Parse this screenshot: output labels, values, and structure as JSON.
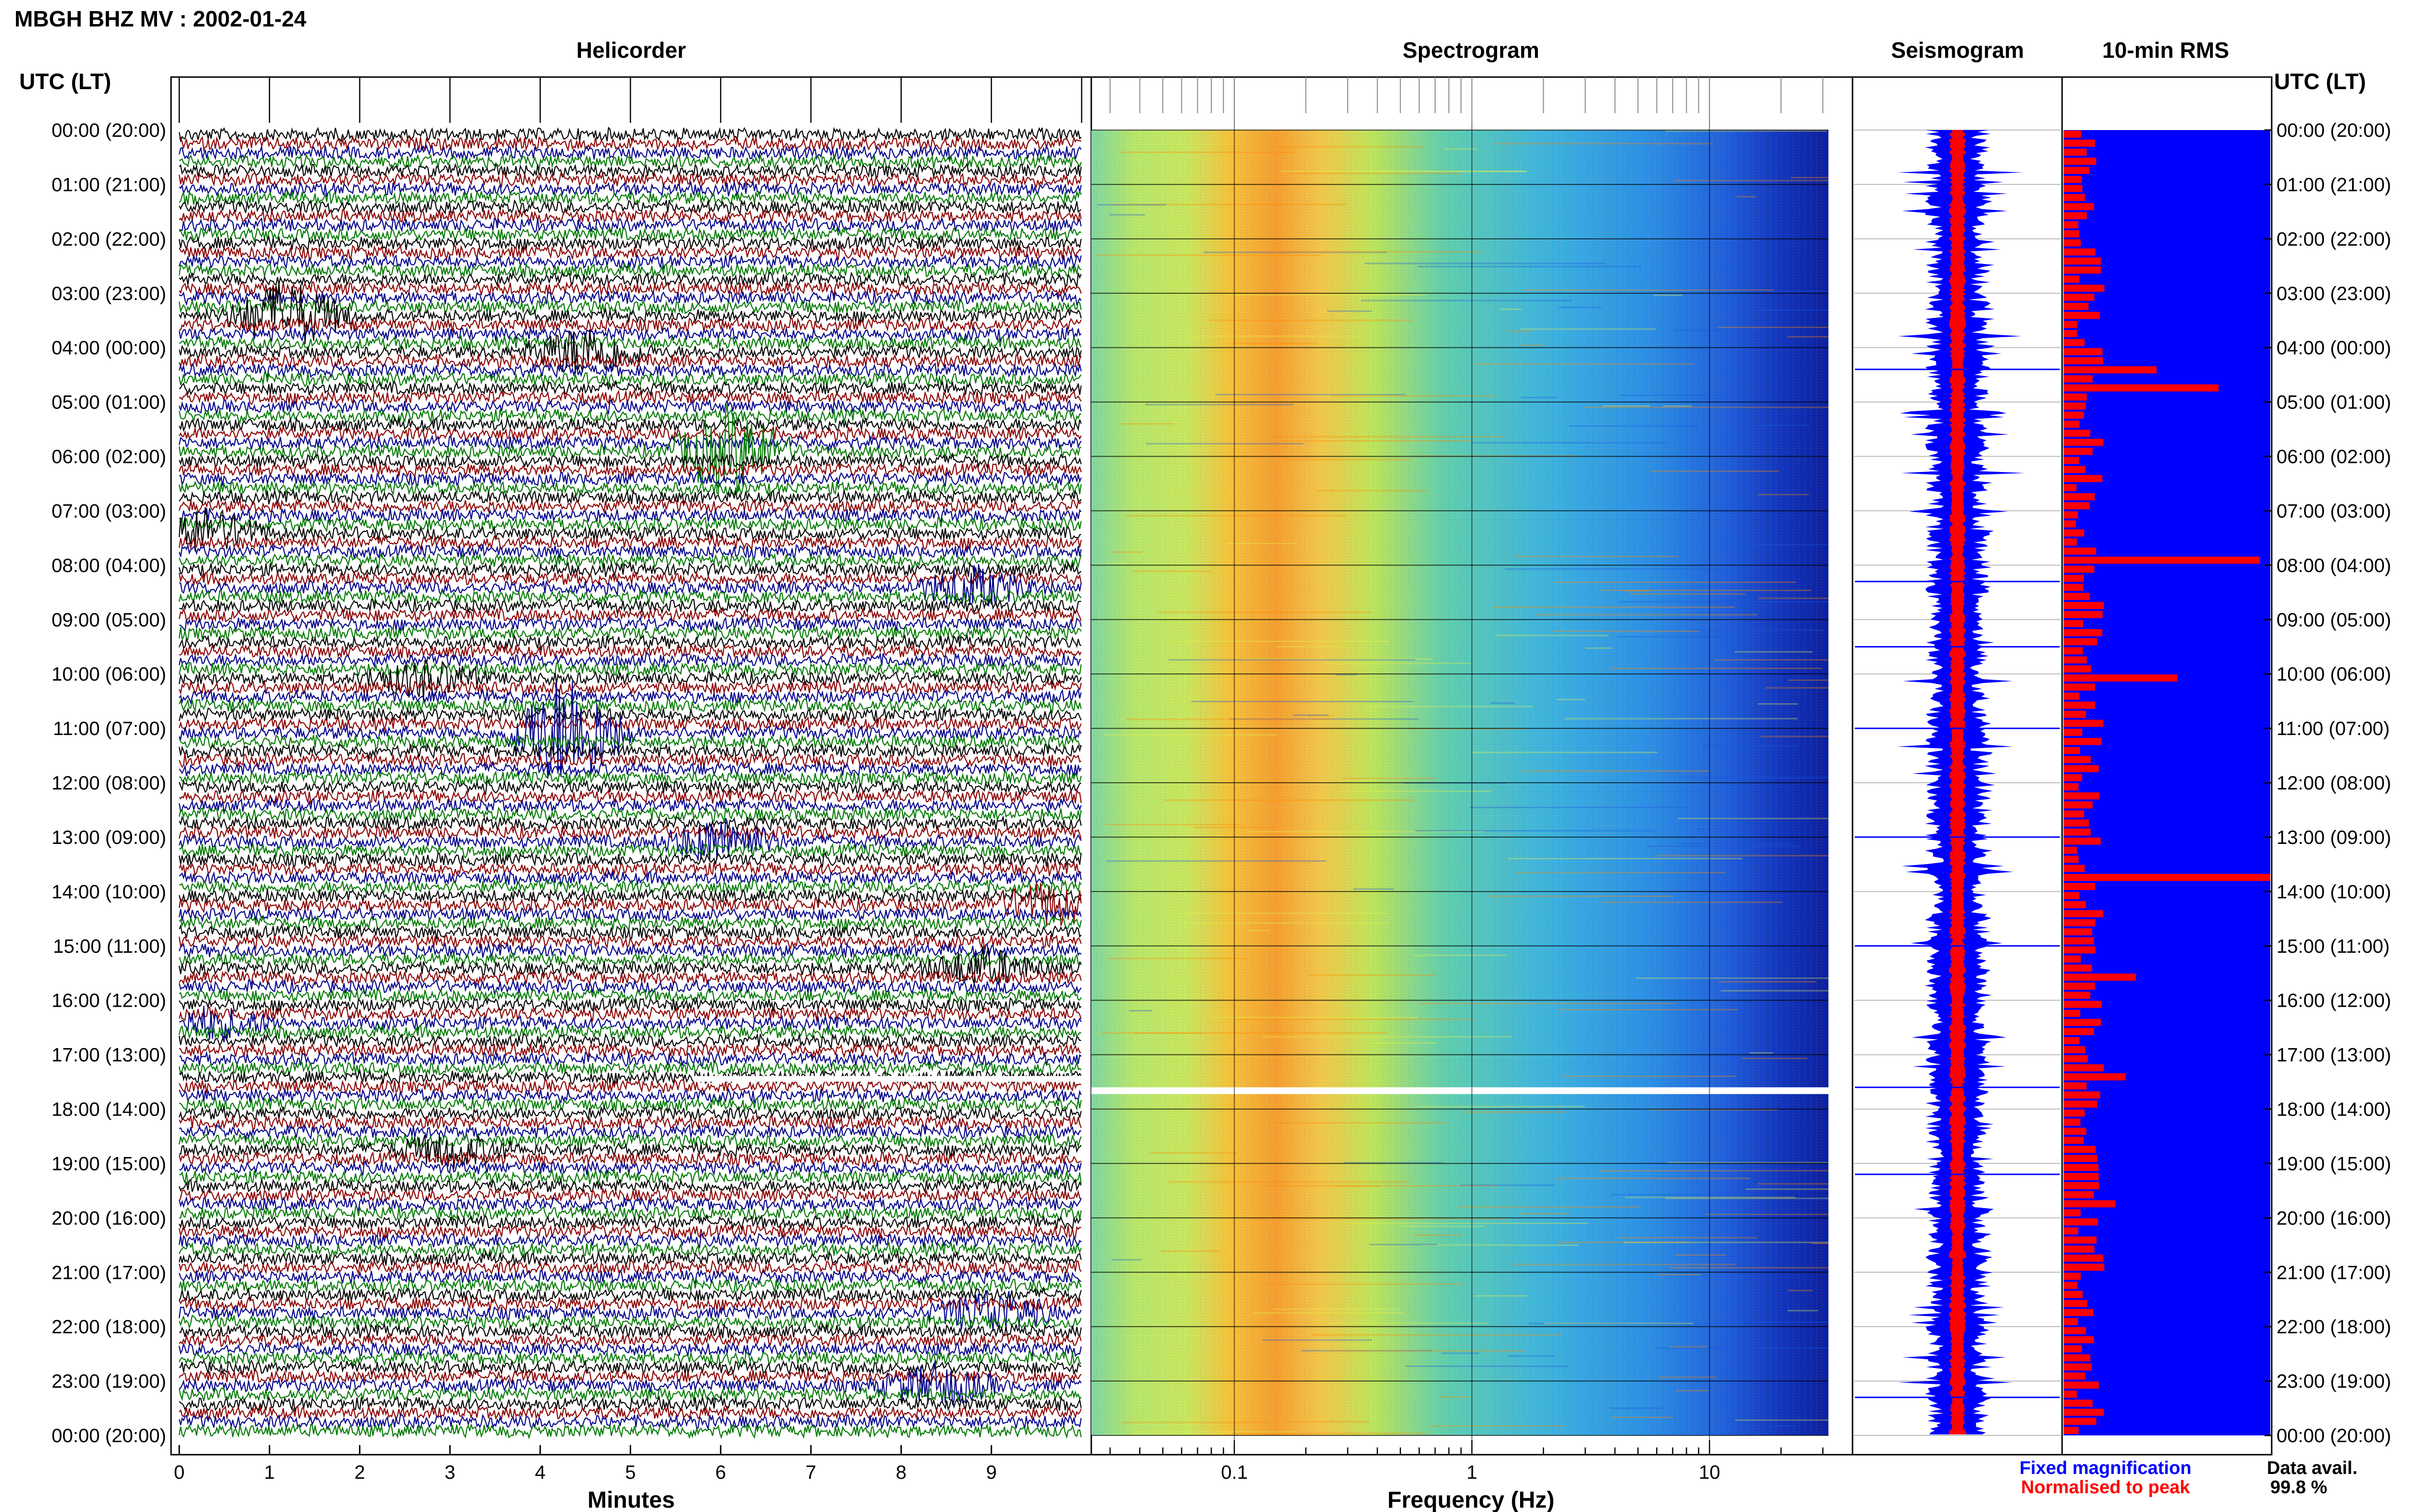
{
  "title": "MBGH BHZ MV : 2002-01-24",
  "panels": {
    "helicorder": "Helicorder",
    "spectrogram": "Spectrogram",
    "seismogram": "Seismogram",
    "rms": "10-min RMS"
  },
  "time_axis_label": "UTC (LT)",
  "time_labels": [
    "00:00 (20:00)",
    "01:00 (21:00)",
    "02:00 (22:00)",
    "03:00 (23:00)",
    "04:00 (00:00)",
    "05:00 (01:00)",
    "06:00 (02:00)",
    "07:00 (03:00)",
    "08:00 (04:00)",
    "09:00 (05:00)",
    "10:00 (06:00)",
    "11:00 (07:00)",
    "12:00 (08:00)",
    "13:00 (09:00)",
    "14:00 (10:00)",
    "15:00 (11:00)",
    "16:00 (12:00)",
    "17:00 (13:00)",
    "18:00 (14:00)",
    "19:00 (15:00)",
    "20:00 (16:00)",
    "21:00 (17:00)",
    "22:00 (18:00)",
    "23:00 (19:00)",
    "00:00 (20:00)"
  ],
  "legend": {
    "fixed": "Fixed magnification",
    "normalised": "Normalised to peak",
    "fixed_color": "#0000ff",
    "normalised_color": "#ff0000"
  },
  "data_availability": {
    "label": "Data avail.",
    "value": "99.8 %"
  },
  "colors": {
    "trace_cycle": [
      "#000000",
      "#8b0000",
      "#00008b",
      "#007a00"
    ],
    "rms_background": "#0000ff",
    "rms_bars": "#ff0000",
    "seismogram_fixed": "#0000ff",
    "seismogram_normalised": "#ff0000",
    "gap": "#ffffff"
  },
  "chart_data": [
    {
      "type": "line",
      "panel": "Helicorder",
      "xlabel": "Minutes",
      "x_ticks": [
        0,
        1,
        2,
        3,
        4,
        5,
        6,
        7,
        8,
        9
      ],
      "xlim": [
        0,
        10
      ],
      "line_interval_minutes": 10,
      "lines_per_hour": 6,
      "hours": 24,
      "trace_color_cycle": [
        "black",
        "dark red",
        "dark blue",
        "green"
      ],
      "data_gap": {
        "start_utc": "17:20",
        "end_utc": "17:30"
      }
    },
    {
      "type": "heatmap",
      "panel": "Spectrogram",
      "xlabel": "Frequency (Hz)",
      "x_scale": "log",
      "x_tick_labels": [
        "0.1",
        "1",
        "10"
      ],
      "x_ticks": [
        0.1,
        1,
        10
      ],
      "xlim": [
        0.025,
        40
      ],
      "peak_band_hz": [
        0.2,
        0.5
      ]
    },
    {
      "type": "line",
      "panel": "Seismogram",
      "series": [
        {
          "name": "Fixed magnification",
          "color": "#0000ff"
        },
        {
          "name": "Normalised to peak",
          "color": "#ff0000"
        }
      ]
    },
    {
      "type": "bar",
      "panel": "10-min RMS",
      "interval_minutes": 10,
      "bins": 144,
      "bar_color": "#ff0000",
      "background_color": "#0000ff",
      "relative_range": [
        0,
        1
      ]
    }
  ]
}
